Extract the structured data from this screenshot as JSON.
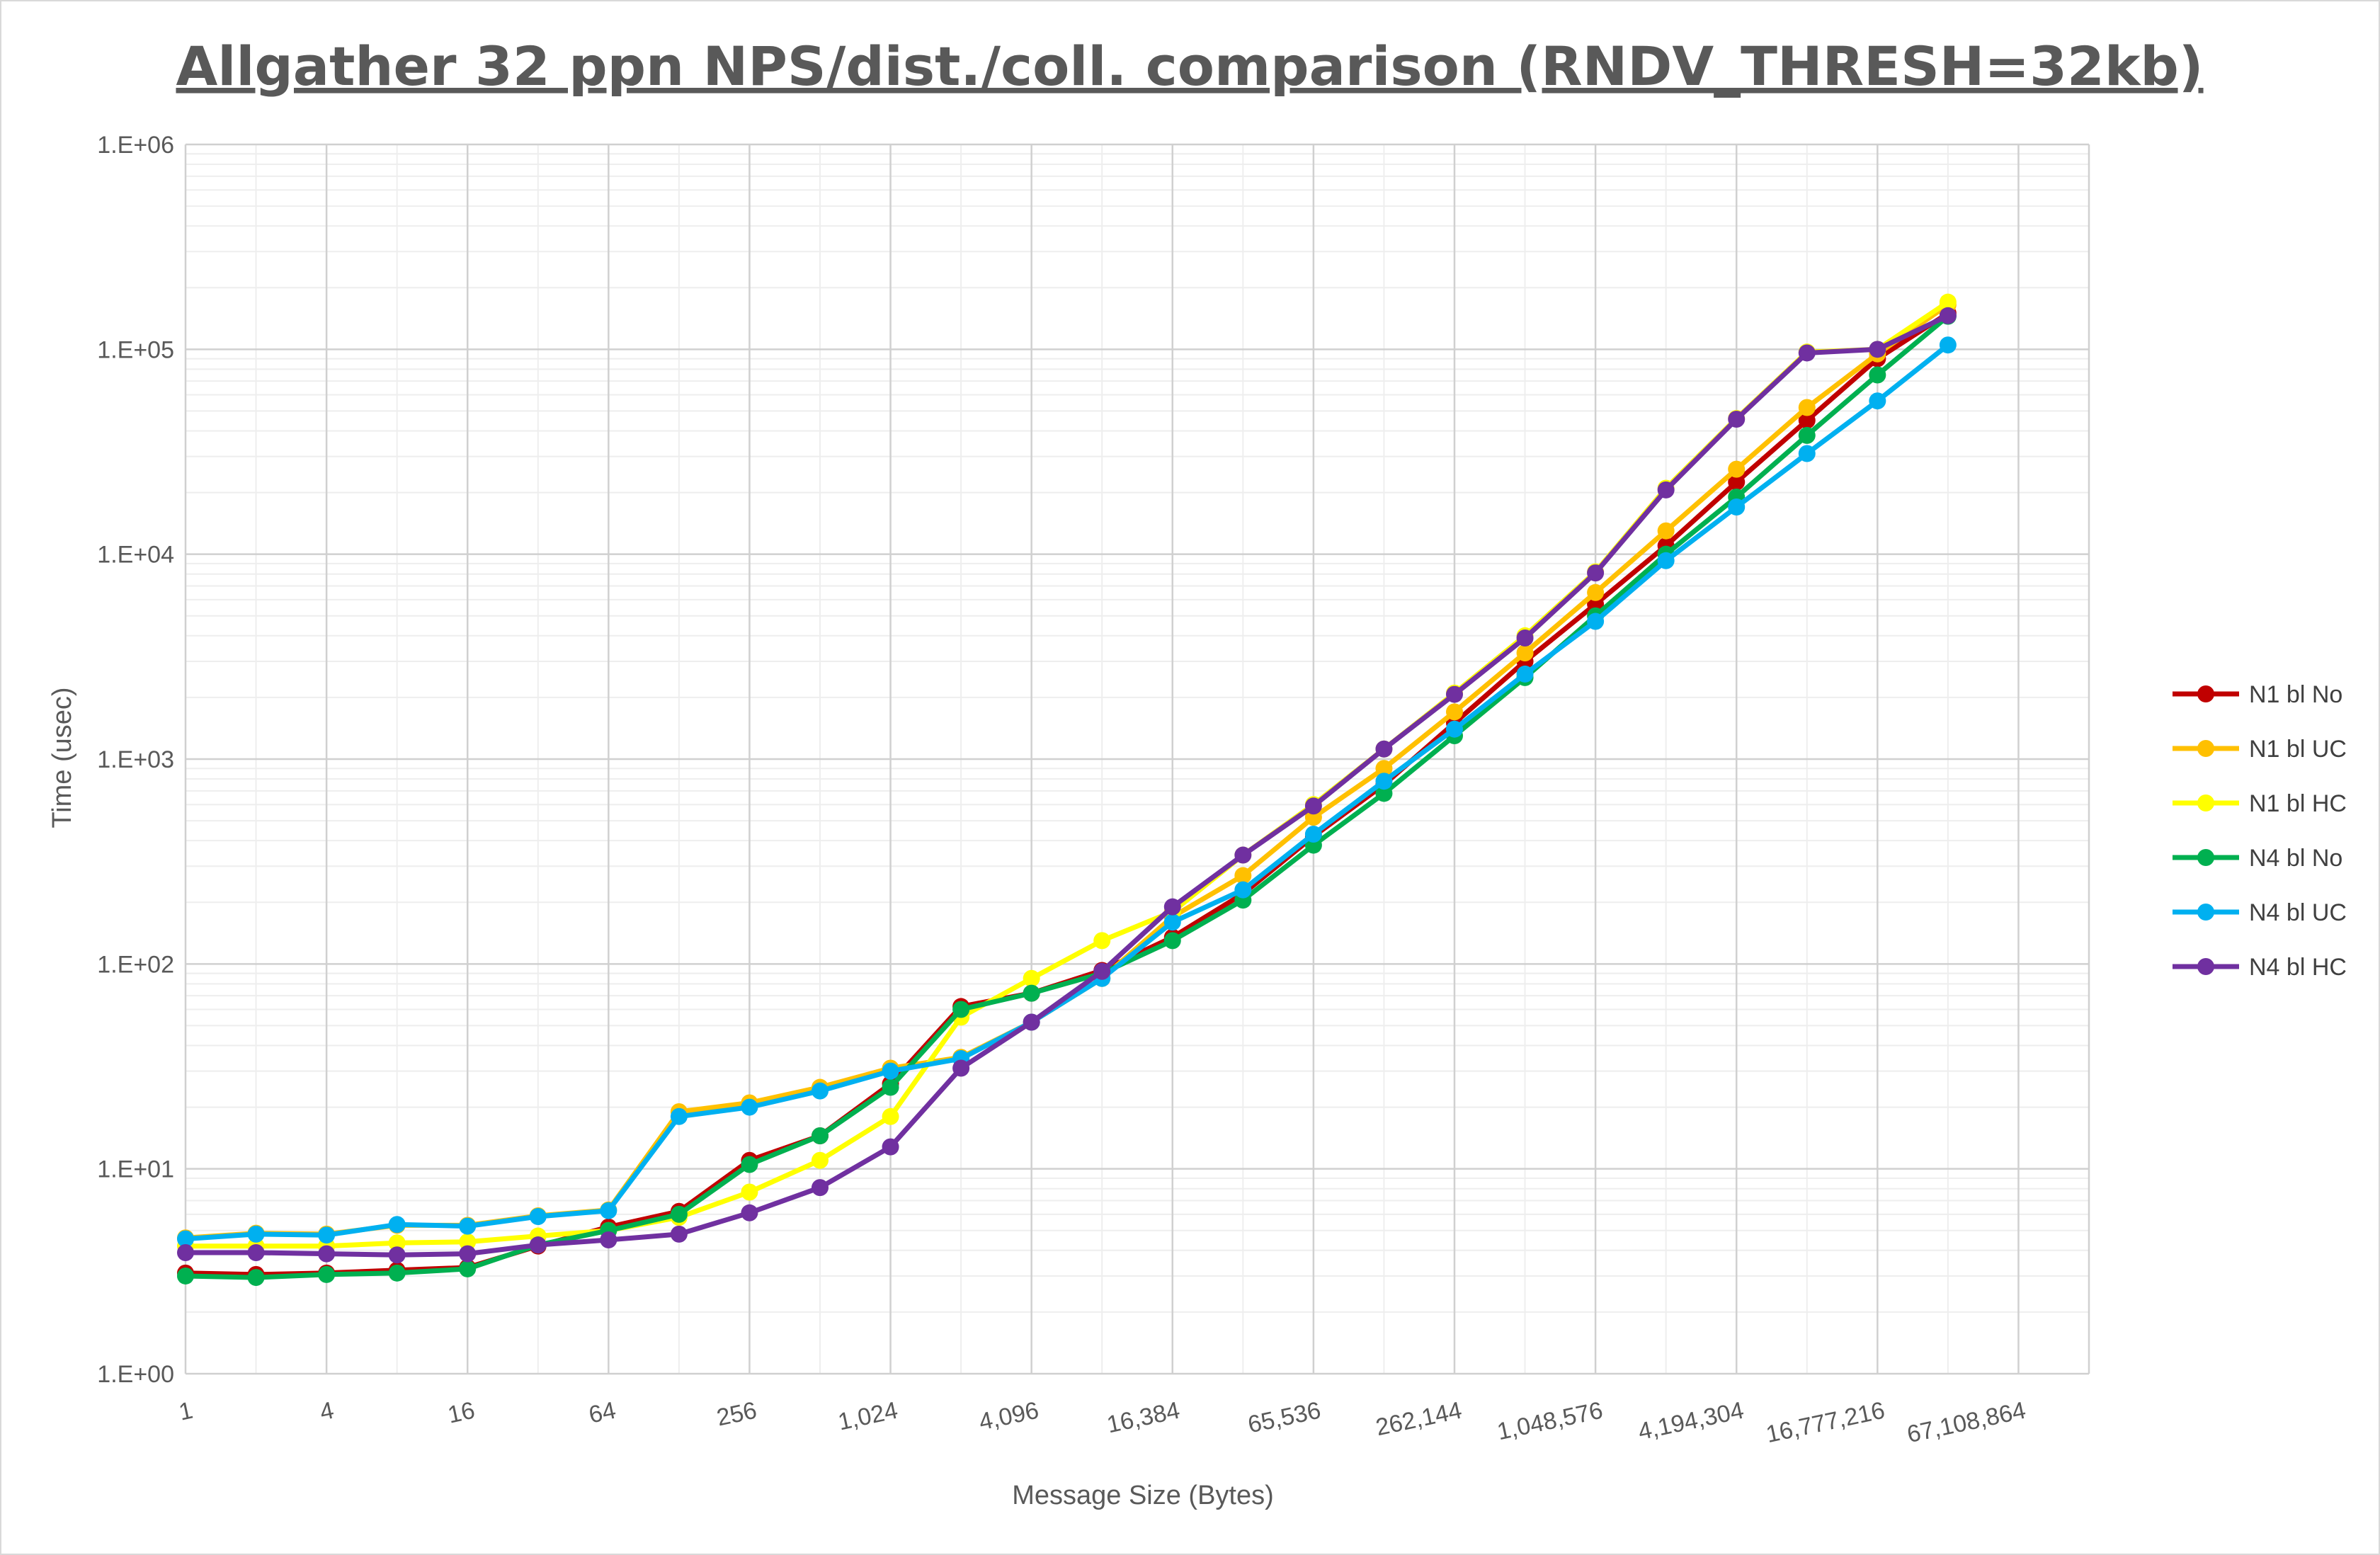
{
  "chart_data": {
    "type": "line",
    "title": "Allgather 32 ppn NPS/dist./coll. comparison (RNDV_THRESH=32kb)",
    "xlabel": "Message Size (Bytes)",
    "ylabel": "Time (usec)",
    "x_scale": "log2",
    "y_scale": "log10",
    "xlim": [
      1,
      134217728
    ],
    "ylim": [
      1,
      1000000
    ],
    "x_tick_values": [
      1,
      4,
      16,
      64,
      256,
      1024,
      4096,
      16384,
      65536,
      262144,
      1048576,
      4194304,
      16777216,
      67108864
    ],
    "x_tick_labels": [
      "1",
      "4",
      "16",
      "64",
      "256",
      "1,024",
      "4,096",
      "16,384",
      "65,536",
      "262,144",
      "1,048,576",
      "4,194,304",
      "16,777,216",
      "67,108,864"
    ],
    "y_tick_values": [
      1,
      10,
      100,
      1000,
      10000,
      100000,
      1000000
    ],
    "y_tick_labels": [
      "1.E+00",
      "1.E+01",
      "1.E+02",
      "1.E+03",
      "1.E+04",
      "1.E+05",
      "1.E+06"
    ],
    "grid": "major and minor on both axes",
    "legend_position": "right",
    "x": [
      1,
      2,
      4,
      8,
      16,
      32,
      64,
      128,
      256,
      512,
      1024,
      2048,
      4096,
      8192,
      16384,
      32768,
      65536,
      131072,
      262144,
      524288,
      1048576,
      2097152,
      4194304,
      8388608,
      16777216,
      33554432
    ],
    "series": [
      {
        "name": "N1 bl No",
        "color": "#c00000",
        "values": [
          3.1,
          3.05,
          3.1,
          3.2,
          3.3,
          4.2,
          5.2,
          6.2,
          11,
          14.5,
          26,
          62,
          72,
          93,
          135,
          220,
          420,
          750,
          1500,
          3000,
          5700,
          11000,
          22500,
          45000,
          90000,
          150000
        ]
      },
      {
        "name": "N1 bl UC",
        "color": "#ffc000",
        "values": [
          4.6,
          4.85,
          4.8,
          5.3,
          5.3,
          5.9,
          6.3,
          19,
          21,
          25,
          31,
          35,
          52,
          85,
          170,
          270,
          520,
          900,
          1700,
          3300,
          6500,
          13000,
          26000,
          52000,
          95000,
          165000
        ]
      },
      {
        "name": "N1 bl HC",
        "color": "#ffff00",
        "values": [
          4.2,
          4.2,
          4.2,
          4.35,
          4.4,
          4.7,
          5,
          5.8,
          7.7,
          11,
          18,
          55,
          85,
          130,
          180,
          340,
          600,
          1120,
          2100,
          4000,
          8200,
          21000,
          46000,
          97000,
          100000,
          170000
        ]
      },
      {
        "name": "N4 bl No",
        "color": "#00b050",
        "values": [
          3.0,
          2.95,
          3.05,
          3.1,
          3.25,
          4.25,
          5.0,
          6.0,
          10.5,
          14.5,
          25,
          60,
          72,
          90,
          130,
          205,
          380,
          680,
          1300,
          2500,
          5000,
          10000,
          19000,
          38000,
          75000,
          145000
        ]
      },
      {
        "name": "N4 bl UC",
        "color": "#00b0f0",
        "values": [
          4.55,
          4.8,
          4.75,
          5.35,
          5.25,
          5.85,
          6.25,
          18,
          20,
          24,
          30,
          34.5,
          52,
          85,
          160,
          230,
          430,
          780,
          1400,
          2600,
          4700,
          9300,
          17000,
          31000,
          56000,
          105000
        ]
      },
      {
        "name": "N4 bl HC",
        "color": "#7030a0",
        "values": [
          3.9,
          3.9,
          3.85,
          3.8,
          3.85,
          4.25,
          4.5,
          4.8,
          6.1,
          8.1,
          12.8,
          31,
          52,
          92,
          190,
          340,
          590,
          1120,
          2070,
          3900,
          8100,
          20600,
          45600,
          96000,
          100000,
          146000
        ]
      }
    ]
  }
}
